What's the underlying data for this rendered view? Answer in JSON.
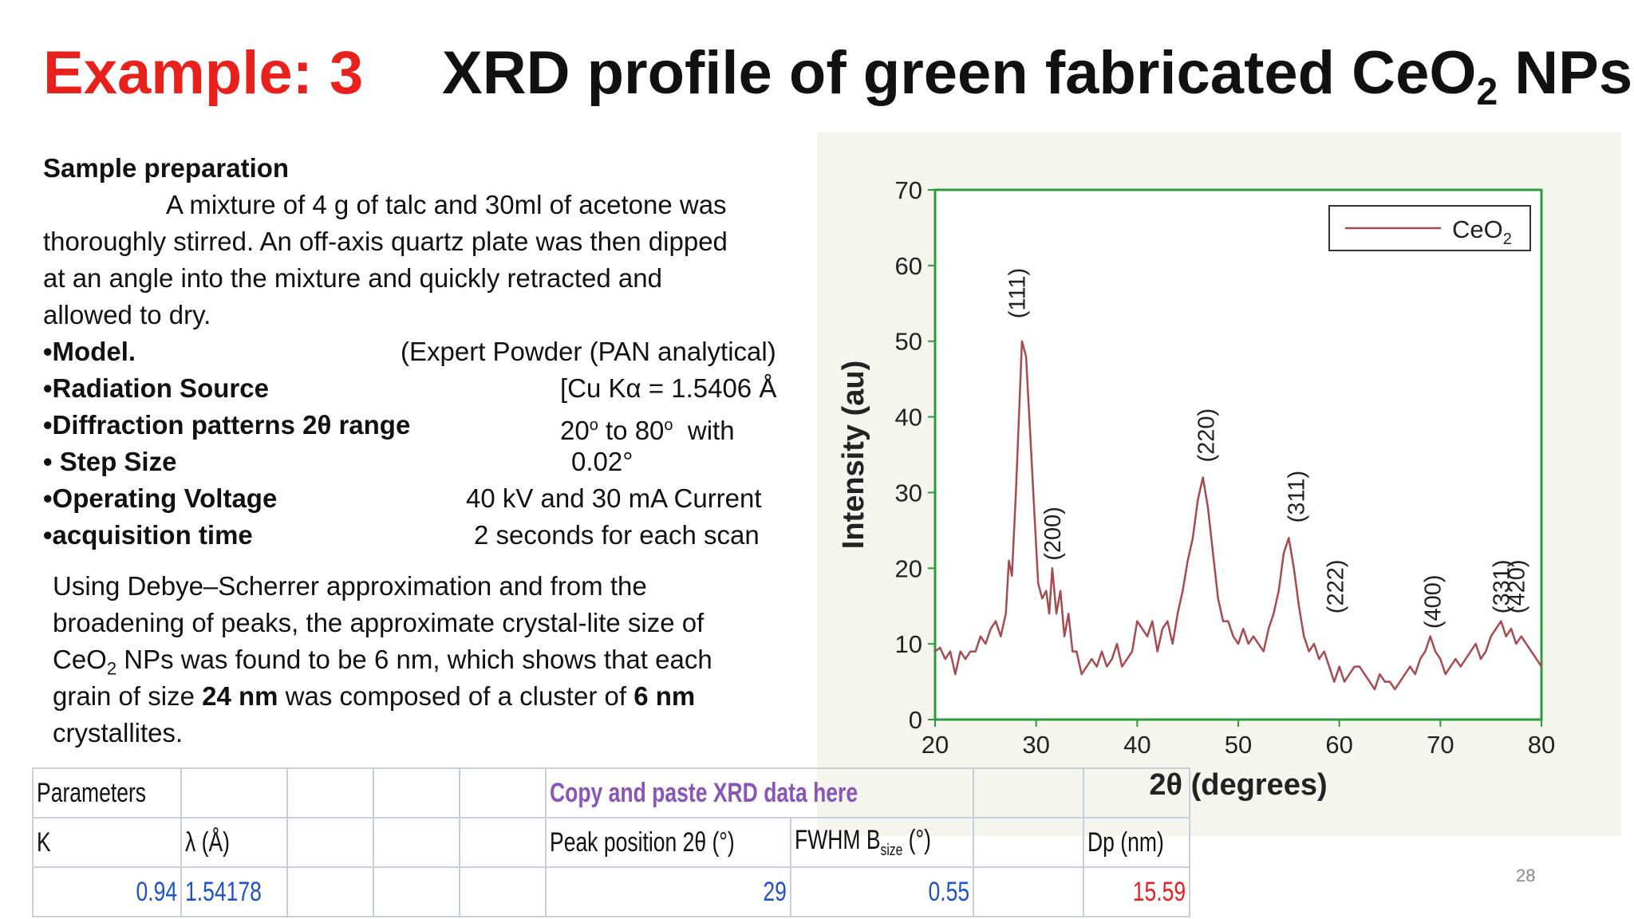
{
  "title": {
    "example": "Example: 3",
    "main_prefix": "XRD profile of green fabricated CeO",
    "main_sub": "2",
    "main_suffix": " NPs"
  },
  "sample": {
    "heading": "Sample preparation",
    "line1": "A mixture of 4 g of talc and 30ml of acetone was",
    "line2": "thoroughly stirred. An off-axis quartz plate was then dipped",
    "line3": "at an angle into the mixture and quickly retracted and",
    "line4": "allowed to dry."
  },
  "params": [
    {
      "label": "•Model.",
      "value": "(Expert Powder (PAN analytical)"
    },
    {
      "label": "•Radiation Source",
      "value": "[Cu Kα = 1.5406 Å"
    },
    {
      "label": "•Diffraction patterns 2θ range",
      "value_a": "20",
      "value_sup1": "o",
      "value_b": " to 80",
      "value_sup2": "o",
      "value_c": "  with"
    },
    {
      "label": "• Step Size",
      "value": "0.02°"
    },
    {
      "label": "•Operating Voltage",
      "value": "40 kV and 30 mA Current"
    },
    {
      "label": "•acquisition time",
      "value": "2 seconds for each scan"
    }
  ],
  "scherrer": {
    "line1": "Using Debye–Scherrer approximation and from the",
    "line2": "broadening of peaks, the approximate crystal-lite size of",
    "line3_a": "CeO",
    "line3_sub": "2",
    "line3_b": " NPs was found to be 6 nm, which shows that each",
    "line4_a": "grain of size ",
    "line4_bold1": "24 nm",
    "line4_b": " was composed of a cluster of ",
    "line4_bold2": "6 nm",
    "line5": "crystallites."
  },
  "table": {
    "parameters_label": "Parameters",
    "copy_label": "Copy and paste XRD data here",
    "h_k": "K",
    "h_lambda": "λ (Å)",
    "h_peak": "Peak position 2θ (°)",
    "h_fwhm_a": "FWHM B",
    "h_fwhm_sub": "size",
    "h_fwhm_b": " (°)",
    "h_dp": "Dp (nm)",
    "v_k": "0.94",
    "v_lambda": "1.54178",
    "v_peak": "29",
    "v_fwhm": "0.55",
    "v_dp": "15.59",
    "colors": {
      "header_purple": "#8a55b9",
      "value_blue": "#1f52c9",
      "value_red": "#e62020"
    }
  },
  "page_number": "28",
  "colors": {
    "title_red": "#e8211d",
    "axis_green": "#2e9a3c",
    "line": "#a64b4f"
  },
  "chart_data": {
    "type": "line",
    "xlabel": "2θ (degrees)",
    "ylabel": "Intensity (au)",
    "xlim": [
      20,
      80
    ],
    "ylim": [
      0,
      70
    ],
    "xticks": [
      20,
      30,
      40,
      50,
      60,
      70,
      80
    ],
    "yticks": [
      0,
      10,
      20,
      30,
      40,
      50,
      60,
      70
    ],
    "legend_position": "top-right",
    "series": [
      {
        "name": "CeO2",
        "x": [
          20,
          20.5,
          21,
          21.5,
          22,
          22.5,
          23,
          23.5,
          24,
          24.5,
          25,
          25.5,
          26,
          26.5,
          27,
          27.3,
          27.6,
          28,
          28.3,
          28.6,
          29,
          29.4,
          29.8,
          30.2,
          30.6,
          31,
          31.3,
          31.6,
          32,
          32.4,
          32.8,
          33.2,
          33.6,
          34,
          34.5,
          35,
          35.5,
          36,
          36.5,
          37,
          37.5,
          38,
          38.5,
          39,
          39.5,
          40,
          40.5,
          41,
          41.5,
          42,
          42.5,
          43,
          43.5,
          44,
          44.5,
          45,
          45.5,
          46,
          46.5,
          47,
          47.5,
          48,
          48.5,
          49,
          49.5,
          50,
          50.5,
          51,
          51.5,
          52,
          52.5,
          53,
          53.5,
          54,
          54.5,
          55,
          55.5,
          56,
          56.5,
          57,
          57.5,
          58,
          58.5,
          59,
          59.5,
          60,
          60.5,
          61,
          61.5,
          62,
          62.5,
          63,
          63.5,
          64,
          64.5,
          65,
          65.5,
          66,
          66.5,
          67,
          67.5,
          68,
          68.5,
          69,
          69.5,
          70,
          70.5,
          71,
          71.5,
          72,
          72.5,
          73,
          73.5,
          74,
          74.5,
          75,
          75.5,
          76,
          76.5,
          77,
          77.5,
          78,
          78.5,
          79,
          79.5,
          80
        ],
        "values": [
          9,
          9.5,
          8,
          9,
          6,
          9,
          8,
          9,
          9,
          11,
          10,
          12,
          13,
          11,
          14,
          21,
          19,
          30,
          40,
          50,
          48,
          38,
          28,
          18,
          16,
          17,
          14,
          20,
          14,
          17,
          11,
          14,
          9,
          9,
          6,
          7,
          8,
          7,
          9,
          7,
          8,
          10,
          7,
          8,
          9,
          13,
          12,
          11,
          13,
          9,
          12,
          13,
          10,
          14,
          17,
          21,
          24,
          29,
          32,
          28,
          22,
          16,
          13,
          13,
          11,
          10,
          12,
          10,
          11,
          10,
          9,
          12,
          14,
          17,
          22,
          24,
          20,
          15,
          11,
          9,
          10,
          8,
          9,
          7,
          5,
          7,
          5,
          6,
          7,
          7,
          6,
          5,
          4,
          6,
          5,
          5,
          4,
          5,
          6,
          7,
          6,
          8,
          9,
          11,
          9,
          8,
          6,
          7,
          8,
          7,
          8,
          9,
          10,
          8,
          9,
          11,
          12,
          13,
          11,
          12,
          10,
          11,
          10,
          9,
          8,
          7
        ]
      }
    ],
    "annotations": [
      "(111)",
      "(200)",
      "(220)",
      "(311)",
      "(222)",
      "(400)",
      "(331)",
      "(420)"
    ]
  }
}
